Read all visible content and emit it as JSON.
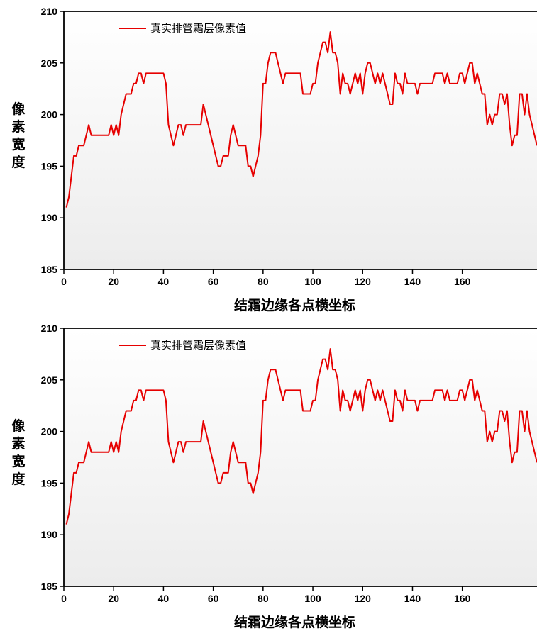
{
  "chart_data": [
    {
      "type": "line",
      "xlabel": "结霜边缘各点横坐标",
      "ylabel": "像素宽度",
      "xlim": [
        0,
        190
      ],
      "ylim": [
        185,
        210
      ],
      "xticks": [
        0,
        20,
        40,
        60,
        80,
        100,
        120,
        140,
        160
      ],
      "yticks": [
        185,
        190,
        195,
        200,
        205,
        210
      ],
      "grid": false,
      "legend_position": "top-left",
      "series": [
        {
          "name": "真实排管霜层像素值",
          "color": "#e60000",
          "x": [
            1,
            2,
            3,
            4,
            5,
            6,
            7,
            8,
            9,
            10,
            11,
            12,
            13,
            14,
            15,
            16,
            17,
            18,
            19,
            20,
            21,
            22,
            23,
            24,
            25,
            26,
            27,
            28,
            29,
            30,
            31,
            32,
            33,
            34,
            35,
            36,
            37,
            38,
            39,
            40,
            41,
            42,
            43,
            44,
            45,
            46,
            47,
            48,
            49,
            50,
            51,
            52,
            53,
            54,
            55,
            56,
            57,
            58,
            59,
            60,
            61,
            62,
            63,
            64,
            65,
            66,
            67,
            68,
            69,
            70,
            71,
            72,
            73,
            74,
            75,
            76,
            77,
            78,
            79,
            80,
            81,
            82,
            83,
            84,
            85,
            86,
            87,
            88,
            89,
            90,
            91,
            92,
            93,
            94,
            95,
            96,
            97,
            98,
            99,
            100,
            101,
            102,
            103,
            104,
            105,
            106,
            107,
            108,
            109,
            110,
            111,
            112,
            113,
            114,
            115,
            116,
            117,
            118,
            119,
            120,
            121,
            122,
            123,
            124,
            125,
            126,
            127,
            128,
            129,
            130,
            131,
            132,
            133,
            134,
            135,
            136,
            137,
            138,
            139,
            140,
            141,
            142,
            143,
            144,
            145,
            146,
            147,
            148,
            149,
            150,
            151,
            152,
            153,
            154,
            155,
            156,
            157,
            158,
            159,
            160,
            161,
            162,
            163,
            164,
            165,
            166,
            167,
            168,
            169,
            170,
            171,
            172,
            173,
            174,
            175,
            176,
            177,
            178,
            179,
            180,
            181,
            182,
            183,
            184,
            185,
            186,
            187,
            188,
            189,
            190
          ],
          "y": [
            191,
            192,
            194,
            196,
            196,
            197,
            197,
            197,
            198,
            199,
            198,
            198,
            198,
            198,
            198,
            198,
            198,
            198,
            199,
            198,
            199,
            198,
            200,
            201,
            202,
            202,
            202,
            203,
            203,
            204,
            204,
            203,
            204,
            204,
            204,
            204,
            204,
            204,
            204,
            204,
            203,
            199,
            198,
            197,
            198,
            199,
            199,
            198,
            199,
            199,
            199,
            199,
            199,
            199,
            199,
            201,
            200,
            199,
            198,
            197,
            196,
            195,
            195,
            196,
            196,
            196,
            198,
            199,
            198,
            197,
            197,
            197,
            197,
            195,
            195,
            194,
            195,
            196,
            198,
            203,
            203,
            205,
            206,
            206,
            206,
            205,
            204,
            203,
            204,
            204,
            204,
            204,
            204,
            204,
            204,
            202,
            202,
            202,
            202,
            203,
            203,
            205,
            206,
            207,
            207,
            206,
            208,
            206,
            206,
            205,
            202,
            204,
            203,
            203,
            202,
            203,
            204,
            203,
            204,
            202,
            204,
            205,
            205,
            204,
            203,
            204,
            203,
            204,
            203,
            202,
            201,
            201,
            204,
            203,
            203,
            202,
            204,
            203,
            203,
            203,
            203,
            202,
            203,
            203,
            203,
            203,
            203,
            203,
            204,
            204,
            204,
            204,
            203,
            204,
            203,
            203,
            203,
            203,
            204,
            204,
            203,
            204,
            205,
            205,
            203,
            204,
            203,
            202,
            202,
            199,
            200,
            199,
            200,
            200,
            202,
            202,
            201,
            202,
            199,
            197,
            198,
            198,
            202,
            202,
            200,
            202,
            200,
            199,
            198,
            197
          ]
        }
      ]
    },
    {
      "type": "line",
      "xlabel": "结霜边缘各点横坐标",
      "ylabel": "像素宽度",
      "xlim": [
        0,
        190
      ],
      "ylim": [
        185,
        210
      ],
      "xticks": [
        0,
        20,
        40,
        60,
        80,
        100,
        120,
        140,
        160
      ],
      "yticks": [
        185,
        190,
        195,
        200,
        205,
        210
      ],
      "grid": false,
      "legend_position": "top-left",
      "series": [
        {
          "name": "真实排管霜层像素值",
          "color": "#e60000",
          "x": [
            1,
            2,
            3,
            4,
            5,
            6,
            7,
            8,
            9,
            10,
            11,
            12,
            13,
            14,
            15,
            16,
            17,
            18,
            19,
            20,
            21,
            22,
            23,
            24,
            25,
            26,
            27,
            28,
            29,
            30,
            31,
            32,
            33,
            34,
            35,
            36,
            37,
            38,
            39,
            40,
            41,
            42,
            43,
            44,
            45,
            46,
            47,
            48,
            49,
            50,
            51,
            52,
            53,
            54,
            55,
            56,
            57,
            58,
            59,
            60,
            61,
            62,
            63,
            64,
            65,
            66,
            67,
            68,
            69,
            70,
            71,
            72,
            73,
            74,
            75,
            76,
            77,
            78,
            79,
            80,
            81,
            82,
            83,
            84,
            85,
            86,
            87,
            88,
            89,
            90,
            91,
            92,
            93,
            94,
            95,
            96,
            97,
            98,
            99,
            100,
            101,
            102,
            103,
            104,
            105,
            106,
            107,
            108,
            109,
            110,
            111,
            112,
            113,
            114,
            115,
            116,
            117,
            118,
            119,
            120,
            121,
            122,
            123,
            124,
            125,
            126,
            127,
            128,
            129,
            130,
            131,
            132,
            133,
            134,
            135,
            136,
            137,
            138,
            139,
            140,
            141,
            142,
            143,
            144,
            145,
            146,
            147,
            148,
            149,
            150,
            151,
            152,
            153,
            154,
            155,
            156,
            157,
            158,
            159,
            160,
            161,
            162,
            163,
            164,
            165,
            166,
            167,
            168,
            169,
            170,
            171,
            172,
            173,
            174,
            175,
            176,
            177,
            178,
            179,
            180,
            181,
            182,
            183,
            184,
            185,
            186,
            187,
            188,
            189,
            190
          ],
          "y": [
            191,
            192,
            194,
            196,
            196,
            197,
            197,
            197,
            198,
            199,
            198,
            198,
            198,
            198,
            198,
            198,
            198,
            198,
            199,
            198,
            199,
            198,
            200,
            201,
            202,
            202,
            202,
            203,
            203,
            204,
            204,
            203,
            204,
            204,
            204,
            204,
            204,
            204,
            204,
            204,
            203,
            199,
            198,
            197,
            198,
            199,
            199,
            198,
            199,
            199,
            199,
            199,
            199,
            199,
            199,
            201,
            200,
            199,
            198,
            197,
            196,
            195,
            195,
            196,
            196,
            196,
            198,
            199,
            198,
            197,
            197,
            197,
            197,
            195,
            195,
            194,
            195,
            196,
            198,
            203,
            203,
            205,
            206,
            206,
            206,
            205,
            204,
            203,
            204,
            204,
            204,
            204,
            204,
            204,
            204,
            202,
            202,
            202,
            202,
            203,
            203,
            205,
            206,
            207,
            207,
            206,
            208,
            206,
            206,
            205,
            202,
            204,
            203,
            203,
            202,
            203,
            204,
            203,
            204,
            202,
            204,
            205,
            205,
            204,
            203,
            204,
            203,
            204,
            203,
            202,
            201,
            201,
            204,
            203,
            203,
            202,
            204,
            203,
            203,
            203,
            203,
            202,
            203,
            203,
            203,
            203,
            203,
            203,
            204,
            204,
            204,
            204,
            203,
            204,
            203,
            203,
            203,
            203,
            204,
            204,
            203,
            204,
            205,
            205,
            203,
            204,
            203,
            202,
            202,
            199,
            200,
            199,
            200,
            200,
            202,
            202,
            201,
            202,
            199,
            197,
            198,
            198,
            202,
            202,
            200,
            202,
            200,
            199,
            198,
            197
          ]
        }
      ]
    }
  ]
}
